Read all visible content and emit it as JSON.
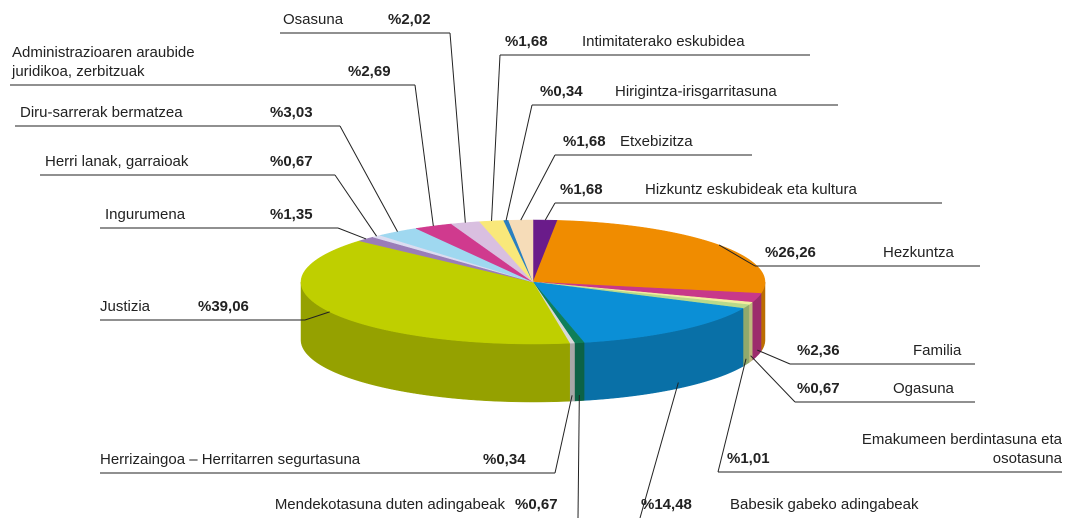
{
  "chart_data": {
    "type": "pie3d",
    "categories": [
      "Hizkuntz eskubideak eta kultura",
      "Hezkuntza",
      "Familia",
      "Ogasuna",
      "Emakumeen berdintasuna eta osotasuna",
      "Babesik gabeko adingabeak",
      "Mendekotasuna duten adingabeak",
      "Herrizaingoa – Herritarren segurtasuna",
      "Justizia",
      "Ingurumena",
      "Herri lanak, garraioak",
      "Diru-sarrerak bermatzea",
      "Administrazioaren araubide juridikoa, zerbitzuak",
      "Osasuna",
      "Intimitaterako eskubidea",
      "Hirigintza-irisgarritasuna",
      "Etxebizitza"
    ],
    "values": [
      1.68,
      26.26,
      2.36,
      0.67,
      1.01,
      14.48,
      0.67,
      0.34,
      39.06,
      1.35,
      0.67,
      3.03,
      2.69,
      2.02,
      1.68,
      0.34,
      1.68
    ],
    "value_labels": [
      "%1,68",
      "%26,26",
      "%2,36",
      "%0,67",
      "%1,01",
      "%14,48",
      "%0,67",
      "%0,34",
      "%39,06",
      "%1,35",
      "%0,67",
      "%3,03",
      "%2,69",
      "%2,02",
      "%1,68",
      "%0,34",
      "%1,68"
    ],
    "colors": [
      "#6a1b8a",
      "#f08c00",
      "#c8388a",
      "#f3eea0",
      "#b9d98a",
      "#0b8fd6",
      "#0f7f5a",
      "#d8d8d8",
      "#bfcf00",
      "#9a7db8",
      "#dcdcf0",
      "#9fd8f0",
      "#d03a8e",
      "#d9bfe0",
      "#f9e87a",
      "#2a7fc0",
      "#f6dcb8"
    ]
  }
}
